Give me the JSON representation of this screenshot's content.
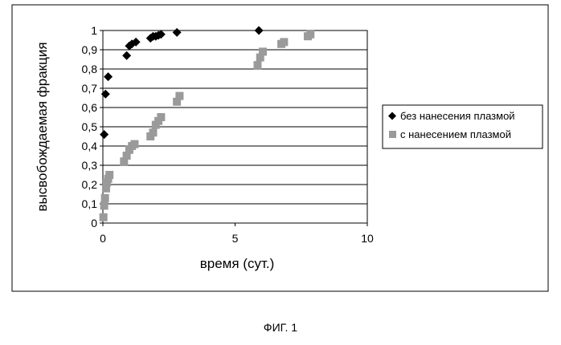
{
  "chart_data": {
    "type": "scatter",
    "title": "",
    "xlabel": "время (сут.)",
    "ylabel": "высвобождаемая фракция",
    "xlim": [
      0,
      10
    ],
    "ylim": [
      0,
      1
    ],
    "x_ticks": [
      "0",
      "5",
      "10"
    ],
    "y_ticks": [
      "0",
      "0,1",
      "0,2",
      "0,3",
      "0,4",
      "0,5",
      "0,6",
      "0,7",
      "0,8",
      "0,9",
      "1"
    ],
    "grid": "horizontal",
    "legend_position": "right",
    "series": [
      {
        "name": "без нанесения плазмой",
        "marker": "diamond",
        "color": "#000000",
        "x": [
          0.05,
          0.1,
          0.2,
          0.9,
          1.0,
          1.1,
          1.25,
          1.8,
          1.9,
          2.0,
          2.1,
          2.2,
          2.8,
          5.9
        ],
        "y": [
          0.46,
          0.67,
          0.76,
          0.87,
          0.92,
          0.93,
          0.94,
          0.96,
          0.97,
          0.97,
          0.975,
          0.98,
          0.99,
          1.0
        ]
      },
      {
        "name": "с нанесением плазмой",
        "marker": "square",
        "color": "#9a9a9a",
        "x": [
          0.02,
          0.05,
          0.08,
          0.12,
          0.15,
          0.2,
          0.25,
          0.8,
          0.9,
          1.0,
          1.1,
          1.2,
          1.8,
          1.9,
          2.0,
          2.1,
          2.2,
          2.8,
          2.9,
          5.85,
          5.95,
          6.05,
          6.75,
          6.85,
          7.75,
          7.85
        ],
        "y": [
          0.03,
          0.09,
          0.13,
          0.18,
          0.21,
          0.23,
          0.25,
          0.32,
          0.35,
          0.38,
          0.4,
          0.41,
          0.45,
          0.47,
          0.51,
          0.53,
          0.55,
          0.63,
          0.66,
          0.82,
          0.86,
          0.89,
          0.93,
          0.94,
          0.97,
          0.98
        ]
      }
    ]
  },
  "figure_caption": "ФИГ. 1"
}
